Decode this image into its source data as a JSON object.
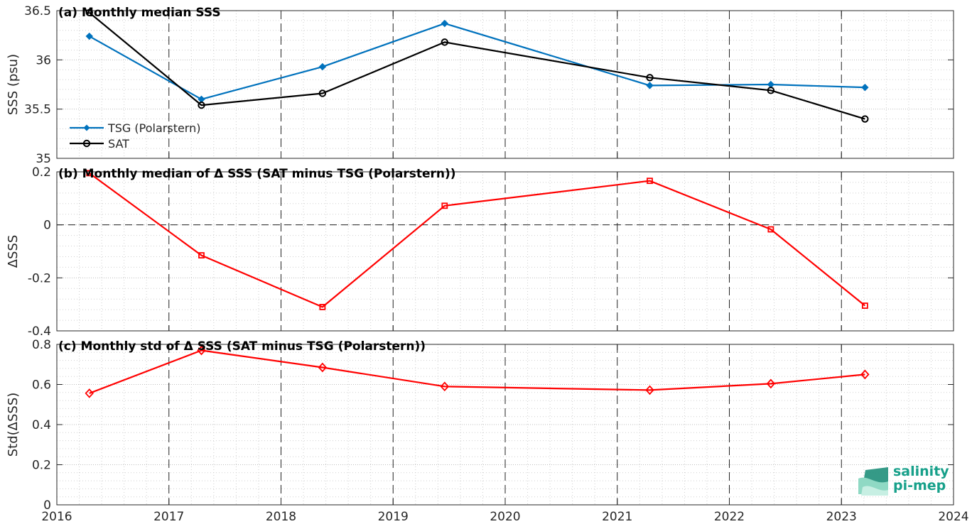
{
  "chart_data": [
    {
      "type": "line",
      "title": "(a) Monthly median SSS",
      "ylabel": "SSS (psu)",
      "xlim": [
        2016,
        2024
      ],
      "ylim": [
        35,
        36.5
      ],
      "yticks": [
        "35",
        "35.5",
        "36",
        "36.5"
      ],
      "grid": true,
      "legend_position": "bottom-left",
      "x": [
        2016.29,
        2017.29,
        2018.37,
        2019.46,
        2021.29,
        2022.37,
        2023.21
      ],
      "series": [
        {
          "name": "TSG (Polarstern)",
          "color": "#0072bd",
          "marker": "diamond-filled",
          "values": [
            36.24,
            35.6,
            35.93,
            36.37,
            35.74,
            35.75,
            35.72
          ]
        },
        {
          "name": "SAT",
          "color": "#000000",
          "marker": "circle",
          "values": [
            36.48,
            35.54,
            35.66,
            36.18,
            35.82,
            35.69,
            35.4
          ]
        }
      ]
    },
    {
      "type": "line",
      "title": "(b) Monthly median of Δ SSS (SAT minus TSG (Polarstern))",
      "ylabel": "ΔSSS",
      "xlim": [
        2016,
        2024
      ],
      "ylim": [
        -0.4,
        0.2
      ],
      "yticks": [
        "-0.4",
        "-0.2",
        "0",
        "0.2"
      ],
      "grid": true,
      "zero_line": true,
      "x": [
        2016.29,
        2017.29,
        2018.37,
        2019.46,
        2021.29,
        2022.37,
        2023.21
      ],
      "series": [
        {
          "color": "#ff0000",
          "marker": "square",
          "values": [
            0.195,
            -0.115,
            -0.31,
            0.072,
            0.166,
            -0.017,
            -0.305
          ]
        }
      ]
    },
    {
      "type": "line",
      "title": "(c) Monthly std of Δ SSS (SAT minus TSG (Polarstern))",
      "ylabel": "Std(ΔSSS)",
      "xlim": [
        2016,
        2024
      ],
      "ylim": [
        0,
        0.8
      ],
      "yticks": [
        "0",
        "0.2",
        "0.4",
        "0.6",
        "0.8"
      ],
      "xticks": [
        "2016",
        "2017",
        "2018",
        "2019",
        "2020",
        "2021",
        "2022",
        "2023",
        "2024"
      ],
      "grid": true,
      "x": [
        2016.29,
        2017.29,
        2018.37,
        2019.46,
        2021.29,
        2022.37,
        2023.21
      ],
      "series": [
        {
          "color": "#ff0000",
          "marker": "diamond",
          "values": [
            0.556,
            0.77,
            0.685,
            0.59,
            0.572,
            0.604,
            0.65
          ]
        }
      ]
    }
  ],
  "logo": {
    "line1": "salinity",
    "line2": "pi-mep"
  }
}
